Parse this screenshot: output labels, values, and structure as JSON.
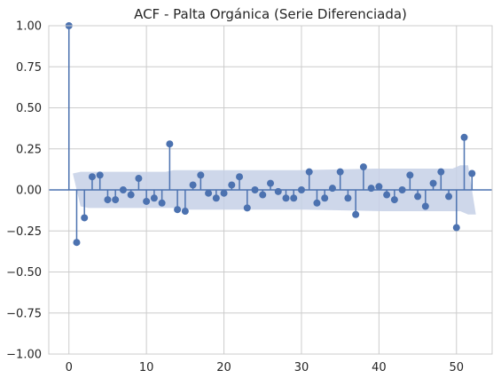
{
  "chart_data": {
    "type": "stem",
    "title": "ACF - Palta Orgánica (Serie Diferenciada)",
    "xlabel": "",
    "ylabel": "",
    "xlim": [
      -2.6,
      54.6
    ],
    "ylim": [
      -1.0,
      1.0
    ],
    "xticks": [
      0,
      10,
      20,
      30,
      40,
      50
    ],
    "xtick_labels": [
      "0",
      "10",
      "20",
      "30",
      "40",
      "50"
    ],
    "yticks": [
      -1.0,
      -0.75,
      -0.5,
      -0.25,
      0.0,
      0.25,
      0.5,
      0.75,
      1.0
    ],
    "ytick_labels": [
      "−1.00",
      "−0.75",
      "−0.50",
      "−0.25",
      "0.00",
      "0.25",
      "0.50",
      "0.75",
      "1.00"
    ],
    "grid": true,
    "colors": {
      "stem": "#4c72b0",
      "band": "#c5d0e6",
      "grid": "#cccccc",
      "frame": "#cccccc"
    },
    "lags": [
      0,
      1,
      2,
      3,
      4,
      5,
      6,
      7,
      8,
      9,
      10,
      11,
      12,
      13,
      14,
      15,
      16,
      17,
      18,
      19,
      20,
      21,
      22,
      23,
      24,
      25,
      26,
      27,
      28,
      29,
      30,
      31,
      32,
      33,
      34,
      35,
      36,
      37,
      38,
      39,
      40,
      41,
      42,
      43,
      44,
      45,
      46,
      47,
      48,
      49,
      50,
      51,
      52
    ],
    "acf": [
      1.0,
      -0.32,
      -0.17,
      0.08,
      0.09,
      -0.06,
      -0.06,
      0.0,
      -0.03,
      0.07,
      -0.07,
      -0.05,
      -0.08,
      0.28,
      -0.12,
      -0.13,
      0.03,
      0.09,
      -0.02,
      -0.05,
      -0.02,
      0.03,
      0.08,
      -0.11,
      0.0,
      -0.03,
      0.04,
      -0.01,
      -0.05,
      -0.05,
      0.0,
      0.11,
      -0.08,
      -0.05,
      0.01,
      0.11,
      -0.05,
      -0.15,
      0.14,
      0.01,
      0.02,
      -0.03,
      -0.06,
      0.0,
      0.09,
      -0.04,
      -0.1,
      0.04,
      0.11,
      -0.04,
      -0.23,
      0.32,
      0.1
    ],
    "confidence_band": {
      "lags": [
        1,
        2,
        5,
        10,
        13,
        14,
        20,
        30,
        40,
        50,
        51,
        52
      ],
      "upper": [
        0.1,
        0.11,
        0.11,
        0.11,
        0.11,
        0.12,
        0.12,
        0.12,
        0.13,
        0.13,
        0.15,
        0.15
      ],
      "lower": [
        -0.1,
        -0.11,
        -0.11,
        -0.11,
        -0.11,
        -0.12,
        -0.12,
        -0.12,
        -0.13,
        -0.13,
        -0.15,
        -0.15
      ]
    }
  }
}
